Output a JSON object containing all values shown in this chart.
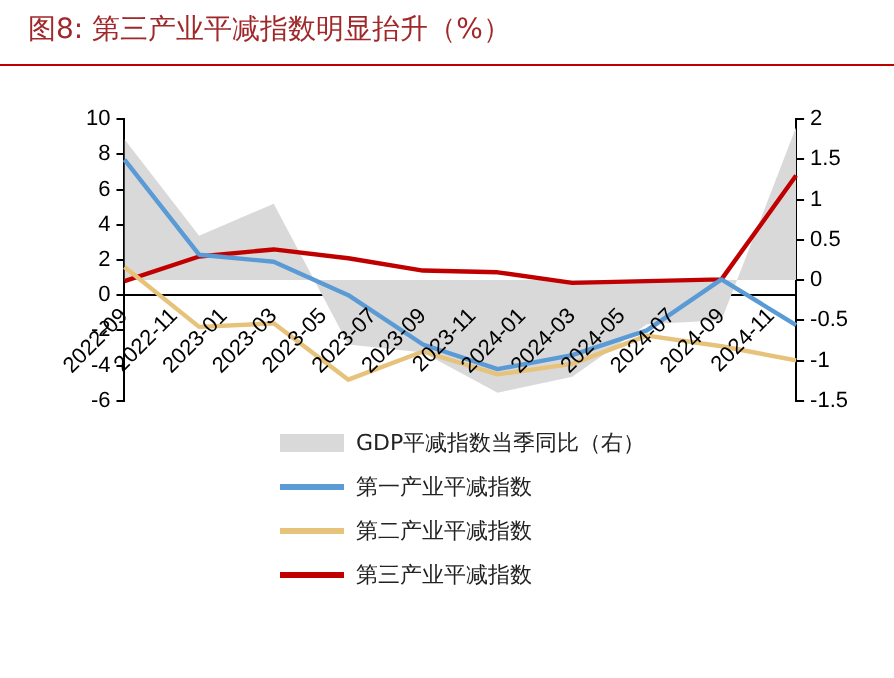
{
  "chart_data": {
    "type": "line",
    "title": "图8:  第三产业平减指数明显抬升（%）",
    "categories": [
      "2022-09",
      null,
      "2022-11",
      null,
      "2023-01",
      null,
      "2023-03",
      null,
      "2023-05",
      null,
      "2023-07",
      null,
      "2023-09",
      null,
      "2023-11",
      null,
      "2024-01",
      null,
      "2024-03",
      null,
      "2024-05",
      null,
      "2024-07",
      null,
      "2024-09",
      null,
      "2024-11",
      null
    ],
    "series": [
      {
        "name": "GDP平减指数当季同比（右）",
        "type": "area",
        "axis": "y2",
        "color": "#d9d9d9",
        "values": [
          1.75,
          null,
          null,
          0.55,
          null,
          null,
          0.95,
          null,
          null,
          -0.8,
          null,
          null,
          -0.9,
          null,
          null,
          -1.4,
          null,
          null,
          -1.2,
          null,
          null,
          -0.55,
          null,
          null,
          -0.5,
          null,
          null,
          1.9
        ]
      },
      {
        "name": "第一产业平减指数",
        "color": "#5b9bd5",
        "values": [
          7.7,
          null,
          null,
          2.3,
          null,
          null,
          1.9,
          null,
          null,
          0,
          null,
          null,
          -2.8,
          null,
          null,
          -4.2,
          null,
          null,
          -3.4,
          null,
          null,
          -2.0,
          null,
          null,
          0.9,
          null,
          null,
          -1.7
        ]
      },
      {
        "name": "第二产业平减指数",
        "color": "#e6c27a",
        "values": [
          1.6,
          null,
          null,
          -1.8,
          null,
          null,
          -1.6,
          null,
          null,
          -4.8,
          null,
          null,
          -3.2,
          null,
          null,
          -4.5,
          null,
          null,
          -3.9,
          null,
          null,
          -2.3,
          null,
          null,
          -2.9,
          null,
          null,
          -3.7
        ]
      },
      {
        "name": "第三产业平减指数",
        "color": "#c00000",
        "values": [
          0.8,
          null,
          null,
          2.2,
          null,
          null,
          2.6,
          null,
          null,
          2.1,
          null,
          null,
          1.4,
          null,
          null,
          1.3,
          null,
          null,
          0.7,
          null,
          null,
          0.8,
          null,
          null,
          0.9,
          null,
          null,
          6.8
        ]
      }
    ],
    "ylim": [
      -6,
      10
    ],
    "yticks": [
      -6,
      -4,
      -2,
      0,
      2,
      4,
      6,
      8,
      10
    ],
    "y2lim": [
      -1.5,
      2
    ],
    "y2ticks": [
      -1.5,
      -1,
      -0.5,
      0,
      0.5,
      1,
      1.5,
      2
    ],
    "grid": false,
    "legend": "bottom",
    "marker": "none",
    "line_style": "solid"
  }
}
